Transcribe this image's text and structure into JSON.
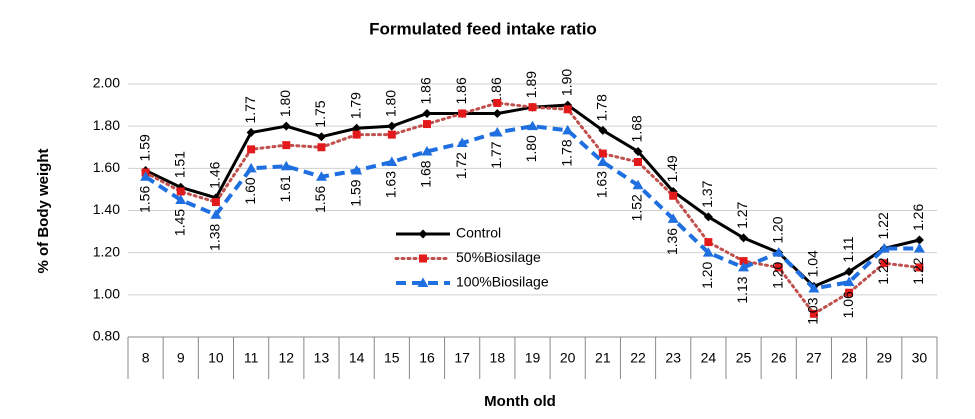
{
  "chart_data": {
    "type": "line",
    "title": "Formulated feed intake ratio",
    "x_label": "Month old",
    "y_label": "% of Body weight",
    "categories": [
      "8",
      "9",
      "10",
      "11",
      "12",
      "13",
      "14",
      "15",
      "16",
      "17",
      "18",
      "19",
      "20",
      "21",
      "22",
      "23",
      "24",
      "25",
      "26",
      "27",
      "28",
      "29",
      "30"
    ],
    "series": [
      {
        "name": "Control",
        "color": "#000000",
        "marker": "diamond",
        "line_style": "solid",
        "values": [
          1.59,
          1.51,
          1.46,
          1.77,
          1.8,
          1.75,
          1.79,
          1.8,
          1.86,
          1.86,
          1.86,
          1.89,
          1.9,
          1.78,
          1.68,
          1.49,
          1.37,
          1.27,
          1.2,
          1.04,
          1.11,
          1.22,
          1.26
        ],
        "value_labels": [
          "1.59",
          "1.51",
          "1.46",
          "1.77",
          "1.80",
          "1.75",
          "1.79",
          "1.80",
          "1.86",
          "1.86",
          "1.86",
          "1.89",
          "1.90",
          "1.78",
          "1.68",
          "1.49",
          "1.37",
          "1.27",
          "1.20",
          "1.04",
          "1.11",
          "1.22",
          "1.26"
        ],
        "label_position": "above"
      },
      {
        "name": "50%Biosilage",
        "color": "#e31a1c",
        "line_color": "#c0504d",
        "marker": "square",
        "line_style": "dotted",
        "values": [
          1.58,
          1.49,
          1.44,
          1.69,
          1.71,
          1.7,
          1.76,
          1.76,
          1.81,
          1.86,
          1.91,
          1.89,
          1.88,
          1.67,
          1.63,
          1.47,
          1.25,
          1.16,
          1.13,
          0.91,
          1.01,
          1.15,
          1.13
        ]
      },
      {
        "name": "100%Biosilage",
        "color": "#1f6fe0",
        "marker": "triangle",
        "line_style": "dashed",
        "values": [
          1.56,
          1.45,
          1.38,
          1.6,
          1.61,
          1.56,
          1.59,
          1.63,
          1.68,
          1.72,
          1.77,
          1.8,
          1.78,
          1.63,
          1.52,
          1.36,
          1.2,
          1.13,
          1.2,
          1.03,
          1.06,
          1.22,
          1.22
        ],
        "value_labels": [
          "1.56",
          "1.45",
          "1.38",
          "1.60",
          "1.61",
          "1.56",
          "1.59",
          "1.63",
          "1.68",
          "1.72",
          "1.77",
          "1.80",
          "1.78",
          "1.63",
          "1.52",
          "1.36",
          "1.20",
          "1.13",
          "1.20",
          "1.03",
          "1.06",
          "1.22",
          "1.22"
        ],
        "label_position": "below"
      }
    ],
    "ylim": [
      0.8,
      2.0
    ],
    "yticks": [
      {
        "value": 0.8,
        "label": "0.80"
      },
      {
        "value": 1.0,
        "label": "1.00"
      },
      {
        "value": 1.2,
        "label": "1.20"
      },
      {
        "value": 1.4,
        "label": "1.40"
      },
      {
        "value": 1.6,
        "label": "1.60"
      },
      {
        "value": 1.8,
        "label": "1.80"
      },
      {
        "value": 2.0,
        "label": "2.00"
      }
    ],
    "grid": true
  }
}
